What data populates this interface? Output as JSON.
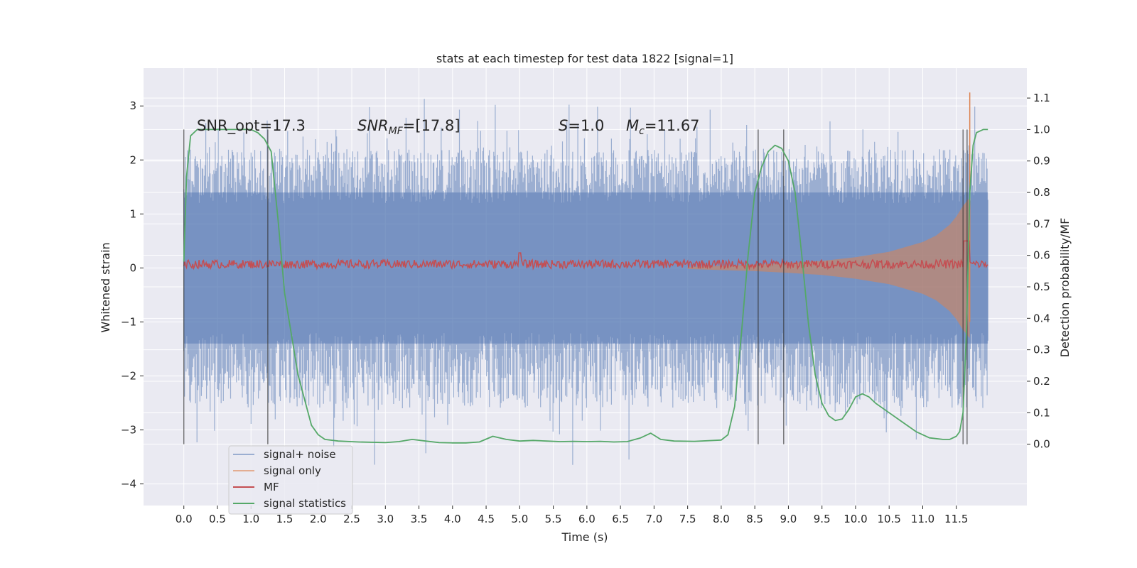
{
  "chart_data": {
    "type": "line",
    "title": "stats at each timestep for test data 1822 [signal=1]",
    "xlabel": "Time (s)",
    "ylabel": "Whitened strain",
    "y2label": "Detection probability/MF",
    "xlim": [
      -0.6,
      12.55
    ],
    "ylim": [
      -4.4,
      3.7
    ],
    "y2lim": [
      -0.195,
      1.195
    ],
    "xticks": [
      0.0,
      0.5,
      1.0,
      1.5,
      2.0,
      2.5,
      3.0,
      3.5,
      4.0,
      4.5,
      5.0,
      5.5,
      6.0,
      6.5,
      7.0,
      7.5,
      8.0,
      8.5,
      9.0,
      9.5,
      10.0,
      10.5,
      11.0,
      11.5
    ],
    "xtick_labels": [
      "0.0",
      "0.5",
      "1.0",
      "1.5",
      "2.0",
      "2.5",
      "3.0",
      "3.5",
      "4.0",
      "4.5",
      "5.0",
      "5.5",
      "6.0",
      "6.5",
      "7.0",
      "7.5",
      "8.0",
      "8.5",
      "9.0",
      "9.5",
      "10.0",
      "10.5",
      "11.0",
      "11.5"
    ],
    "yticks": [
      -4,
      -3,
      -2,
      -1,
      0,
      1,
      2,
      3
    ],
    "ytick_labels": [
      "−4",
      "−3",
      "−2",
      "−1",
      "0",
      "1",
      "2",
      "3"
    ],
    "y2ticks": [
      0.0,
      0.1,
      0.2,
      0.3,
      0.4,
      0.5,
      0.6,
      0.7,
      0.8,
      0.9,
      1.0,
      1.1
    ],
    "y2tick_labels": [
      "0.0",
      "0.1",
      "0.2",
      "0.3",
      "0.4",
      "0.5",
      "0.6",
      "0.7",
      "0.8",
      "0.9",
      "1.0",
      "1.1"
    ],
    "grid": true,
    "legend_position": "lower-left",
    "background": "#eaeaf2",
    "annotations": {
      "snr_opt": "SNR_opt=17.3",
      "snr_mf_label": "SNR",
      "snr_mf_sub": "MF",
      "snr_mf_value": "=[17.8]",
      "s_label": "S",
      "s_value": "=1.0",
      "mc_label": "M",
      "mc_sub": "c",
      "mc_value": "=11.67"
    },
    "series": [
      {
        "name": "signal+ noise",
        "color": "#4c72b0",
        "amplitude_envelope": [
          -2.6,
          2.2
        ],
        "peak_max": 3.3,
        "peak_min": -3.8
      },
      {
        "name": "signal only",
        "color": "#dd8452",
        "envelope_x": [
          7.5,
          8.0,
          8.5,
          9.0,
          9.5,
          10.0,
          10.5,
          11.0,
          11.2,
          11.4,
          11.5,
          11.6,
          11.7
        ],
        "envelope_y": [
          0.02,
          0.04,
          0.06,
          0.09,
          0.13,
          0.2,
          0.3,
          0.48,
          0.6,
          0.8,
          0.95,
          1.15,
          3.25
        ]
      },
      {
        "name": "MF",
        "color": "#c44e52",
        "level": 0.07,
        "spread": 0.08
      },
      {
        "name": "signal statistics",
        "color": "#55a868",
        "x": [
          0.0,
          0.04,
          0.1,
          0.2,
          0.4,
          0.8,
          1.0,
          1.1,
          1.2,
          1.3,
          1.4,
          1.5,
          1.7,
          1.9,
          2.0,
          2.1,
          2.3,
          2.6,
          3.0,
          3.2,
          3.4,
          3.6,
          3.8,
          4.0,
          4.2,
          4.4,
          4.6,
          4.8,
          5.0,
          5.2,
          5.4,
          5.6,
          5.8,
          6.0,
          6.2,
          6.4,
          6.6,
          6.8,
          6.95,
          7.1,
          7.3,
          7.6,
          8.0,
          8.1,
          8.2,
          8.3,
          8.4,
          8.5,
          8.6,
          8.7,
          8.8,
          8.9,
          9.0,
          9.1,
          9.2,
          9.3,
          9.4,
          9.5,
          9.6,
          9.7,
          9.8,
          9.9,
          10.0,
          10.1,
          10.2,
          10.3,
          10.5,
          10.7,
          10.9,
          11.1,
          11.3,
          11.4,
          11.5,
          11.55,
          11.6,
          11.65,
          11.7,
          11.75,
          11.8,
          11.9,
          11.97
        ],
        "y": [
          0.58,
          0.85,
          0.98,
          1.0,
          1.0,
          1.0,
          1.0,
          0.99,
          0.97,
          0.93,
          0.72,
          0.48,
          0.22,
          0.06,
          0.03,
          0.015,
          0.01,
          0.007,
          0.005,
          0.008,
          0.015,
          0.01,
          0.005,
          0.004,
          0.004,
          0.007,
          0.025,
          0.015,
          0.01,
          0.012,
          0.01,
          0.008,
          0.009,
          0.008,
          0.009,
          0.007,
          0.008,
          0.02,
          0.035,
          0.015,
          0.01,
          0.009,
          0.013,
          0.03,
          0.12,
          0.35,
          0.6,
          0.8,
          0.88,
          0.93,
          0.95,
          0.94,
          0.9,
          0.8,
          0.6,
          0.38,
          0.22,
          0.13,
          0.09,
          0.075,
          0.08,
          0.11,
          0.15,
          0.16,
          0.15,
          0.13,
          0.1,
          0.07,
          0.04,
          0.02,
          0.015,
          0.015,
          0.025,
          0.04,
          0.1,
          0.35,
          0.8,
          0.95,
          0.99,
          1.0,
          1.0
        ]
      }
    ],
    "vertical_markers": [
      0.0,
      1.25,
      8.55,
      8.93,
      11.6,
      11.66
    ]
  }
}
